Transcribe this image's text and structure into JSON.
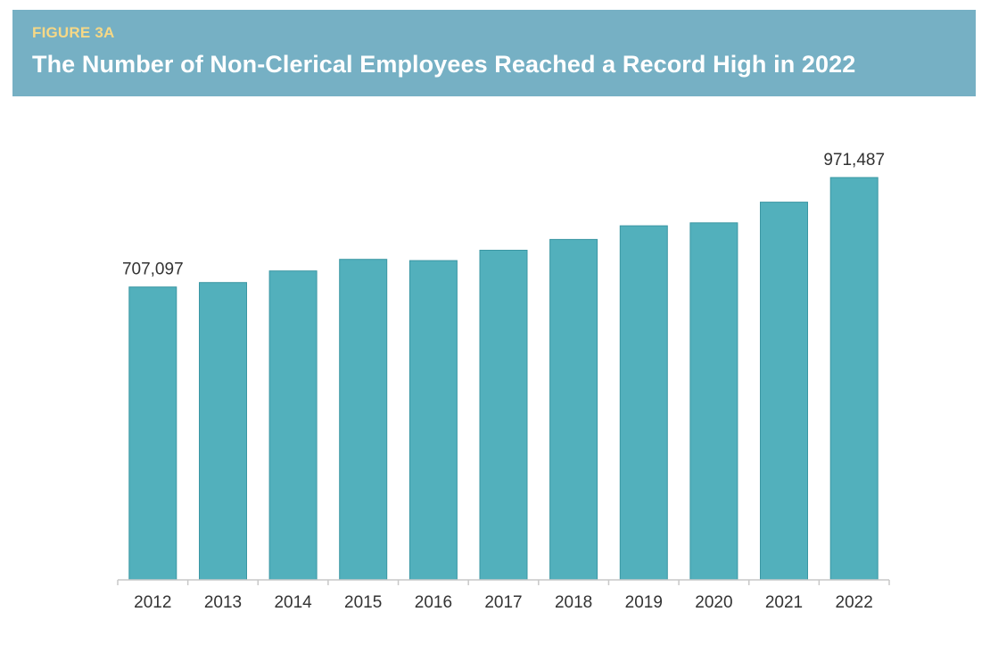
{
  "header": {
    "figure_label": "FIGURE 3A",
    "title": "The Number of Non-Clerical Employees Reached a Record High in 2022",
    "background_color": "#76b0c4",
    "label_color": "#f6d886",
    "title_color": "#ffffff"
  },
  "chart_data": {
    "type": "bar",
    "title": "The Number of Non-Clerical Employees Reached a Record High in 2022",
    "xlabel": "",
    "ylabel": "",
    "categories": [
      "2012",
      "2013",
      "2014",
      "2015",
      "2016",
      "2017",
      "2018",
      "2019",
      "2020",
      "2021",
      "2022"
    ],
    "values": [
      707097,
      718000,
      746000,
      774000,
      771000,
      796000,
      822000,
      855000,
      862000,
      912000,
      971487
    ],
    "data_labels": [
      {
        "category": "2012",
        "text": "707,097"
      },
      {
        "category": "2022",
        "text": "971,487"
      }
    ],
    "ylim": [
      0,
      1000000
    ],
    "grid": false,
    "legend": "none",
    "bar_color": "#52b0bc",
    "bar_edge_color": "#3b97a3"
  }
}
